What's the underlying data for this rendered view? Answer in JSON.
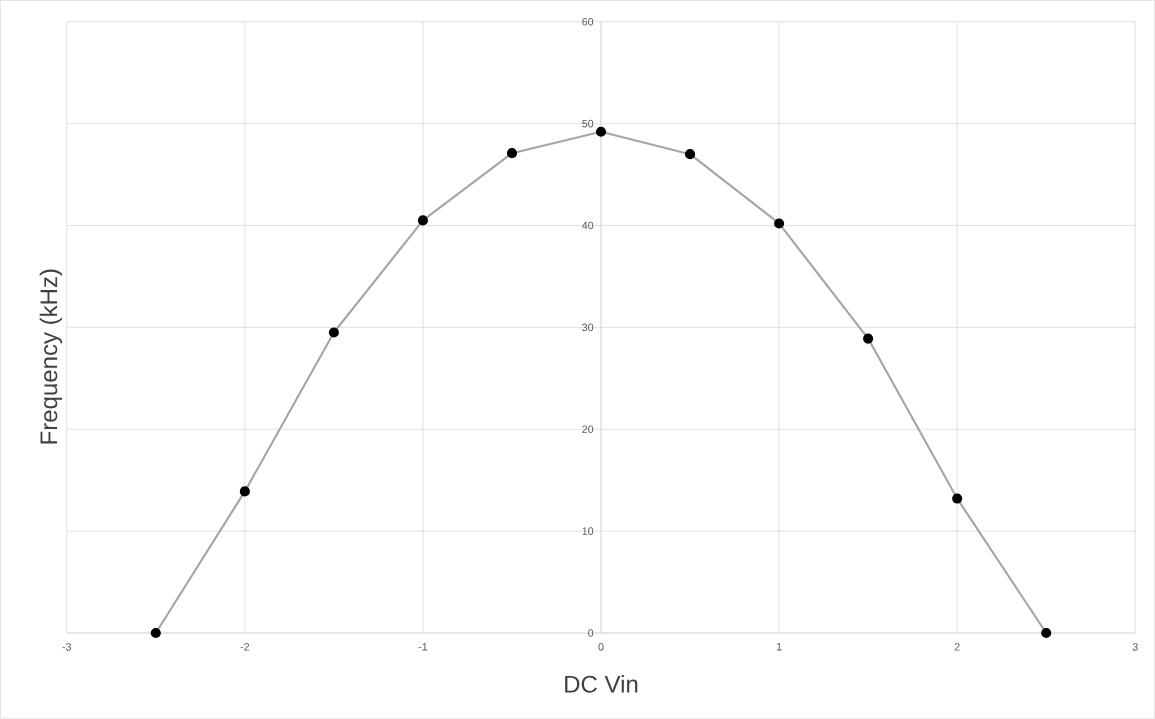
{
  "chart_data": {
    "type": "line",
    "xlabel": "DC Vin",
    "ylabel": "Frequency (kHz)",
    "x": [
      -2.5,
      -2,
      -1.5,
      -1,
      -0.5,
      0,
      0.5,
      1,
      1.5,
      2,
      2.5
    ],
    "series": [
      {
        "color": "#a5a5a5",
        "values": [
          0,
          13.9,
          29.5,
          40.5,
          47.1,
          49.2,
          47.0,
          40.2,
          28.9,
          13.2,
          0
        ]
      }
    ],
    "marker": "circle",
    "grid": true,
    "xlim": [
      -3,
      3
    ],
    "ylim": [
      0,
      60
    ],
    "xticks": [
      -3,
      -2,
      -1,
      0,
      1,
      2,
      3
    ],
    "yticks": [
      0,
      10,
      20,
      30,
      40,
      50,
      60
    ]
  }
}
